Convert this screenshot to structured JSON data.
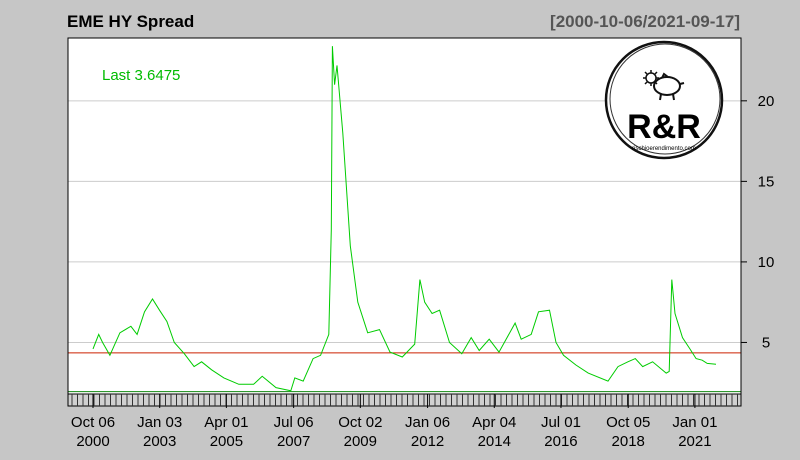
{
  "chart_data": {
    "type": "line",
    "title": "EME HY Spread",
    "date_range": "[2000-10-06/2021-09-17]",
    "last_label": "Last 3.6475",
    "series": [
      {
        "color": "#00cc00",
        "points": [
          [
            "2000-10-06",
            4.6
          ],
          [
            "2000-12-15",
            5.5
          ],
          [
            "2001-02-01",
            5.0
          ],
          [
            "2001-05-01",
            4.2
          ],
          [
            "2001-09-01",
            5.6
          ],
          [
            "2002-01-15",
            6.0
          ],
          [
            "2002-04-01",
            5.5
          ],
          [
            "2002-07-01",
            6.9
          ],
          [
            "2002-10-07",
            7.7
          ],
          [
            "2003-01-01",
            7.0
          ],
          [
            "2003-04-01",
            6.3
          ],
          [
            "2003-07-01",
            5.0
          ],
          [
            "2003-11-01",
            4.3
          ],
          [
            "2004-03-01",
            3.5
          ],
          [
            "2004-06-01",
            3.8
          ],
          [
            "2004-10-01",
            3.3
          ],
          [
            "2005-03-01",
            2.8
          ],
          [
            "2005-09-01",
            2.4
          ],
          [
            "2006-03-01",
            2.4
          ],
          [
            "2006-06-15",
            2.9
          ],
          [
            "2006-12-01",
            2.2
          ],
          [
            "2007-06-01",
            2.0
          ],
          [
            "2007-07-20",
            2.8
          ],
          [
            "2007-11-01",
            2.6
          ],
          [
            "2008-03-01",
            4.0
          ],
          [
            "2008-06-01",
            4.2
          ],
          [
            "2008-09-10",
            5.5
          ],
          [
            "2008-10-10",
            12.0
          ],
          [
            "2008-10-24",
            23.4
          ],
          [
            "2008-11-20",
            21.0
          ],
          [
            "2008-12-20",
            22.2
          ],
          [
            "2009-03-01",
            18.0
          ],
          [
            "2009-06-01",
            11.0
          ],
          [
            "2009-09-01",
            7.5
          ],
          [
            "2010-01-01",
            5.6
          ],
          [
            "2010-05-25",
            5.8
          ],
          [
            "2010-10-01",
            4.4
          ],
          [
            "2011-03-01",
            4.1
          ],
          [
            "2011-08-01",
            4.9
          ],
          [
            "2011-10-04",
            8.9
          ],
          [
            "2011-12-01",
            7.5
          ],
          [
            "2012-03-01",
            6.8
          ],
          [
            "2012-06-01",
            7.0
          ],
          [
            "2012-10-01",
            5.0
          ],
          [
            "2013-03-01",
            4.3
          ],
          [
            "2013-06-25",
            5.3
          ],
          [
            "2013-10-01",
            4.5
          ],
          [
            "2014-02-01",
            5.2
          ],
          [
            "2014-06-01",
            4.4
          ],
          [
            "2014-12-16",
            6.2
          ],
          [
            "2015-03-01",
            5.2
          ],
          [
            "2015-07-01",
            5.5
          ],
          [
            "2015-09-29",
            6.9
          ],
          [
            "2016-02-11",
            7.0
          ],
          [
            "2016-05-01",
            5.0
          ],
          [
            "2016-08-01",
            4.2
          ],
          [
            "2017-01-01",
            3.6
          ],
          [
            "2017-06-01",
            3.1
          ],
          [
            "2018-01-30",
            2.6
          ],
          [
            "2018-06-01",
            3.5
          ],
          [
            "2018-10-01",
            3.8
          ],
          [
            "2018-12-31",
            4.0
          ],
          [
            "2019-04-01",
            3.5
          ],
          [
            "2019-08-01",
            3.8
          ],
          [
            "2020-01-15",
            3.1
          ],
          [
            "2020-02-20",
            3.2
          ],
          [
            "2020-03-23",
            8.9
          ],
          [
            "2020-05-01",
            6.8
          ],
          [
            "2020-08-01",
            5.3
          ],
          [
            "2020-11-01",
            4.6
          ],
          [
            "2021-01-15",
            4.0
          ],
          [
            "2021-04-01",
            3.9
          ],
          [
            "2021-06-01",
            3.7
          ],
          [
            "2021-09-17",
            3.6475
          ]
        ]
      }
    ],
    "hlines": [
      {
        "value": 4.35,
        "color": "#cc2200"
      },
      {
        "value": 1.95,
        "color": "#118811"
      }
    ],
    "xlim": [
      "2000-10-06",
      "2021-09-17"
    ],
    "ylim": [
      1.8,
      23.9
    ],
    "y_ticks": [
      5,
      10,
      15,
      20
    ],
    "y_axis_side": "right",
    "x_ticks": [
      {
        "date": "2000-10-06",
        "line1": "Oct 06",
        "line2": "2000"
      },
      {
        "date": "2003-01-03",
        "line1": "Jan 03",
        "line2": "2003"
      },
      {
        "date": "2005-04-01",
        "line1": "Apr 01",
        "line2": "2005"
      },
      {
        "date": "2007-07-06",
        "line1": "Jul 06",
        "line2": "2007"
      },
      {
        "date": "2009-10-02",
        "line1": "Oct 02",
        "line2": "2009"
      },
      {
        "date": "2012-01-06",
        "line1": "Jan 06",
        "line2": "2012"
      },
      {
        "date": "2014-04-04",
        "line1": "Apr 04",
        "line2": "2014"
      },
      {
        "date": "2016-07-01",
        "line1": "Jul 01",
        "line2": "2016"
      },
      {
        "date": "2018-10-05",
        "line1": "Oct 05",
        "line2": "2018"
      },
      {
        "date": "2021-01-01",
        "line1": "Jan 01",
        "line2": "2021"
      }
    ],
    "grid": "horizontal",
    "colors": {
      "page_background": "#c6c6c6",
      "plot_background": "#ffffff",
      "gridline": "#cccccc",
      "last_label": "#00bb00"
    }
  },
  "logo": {
    "text": "R&R",
    "subtext": "rischioerendimento.com"
  }
}
